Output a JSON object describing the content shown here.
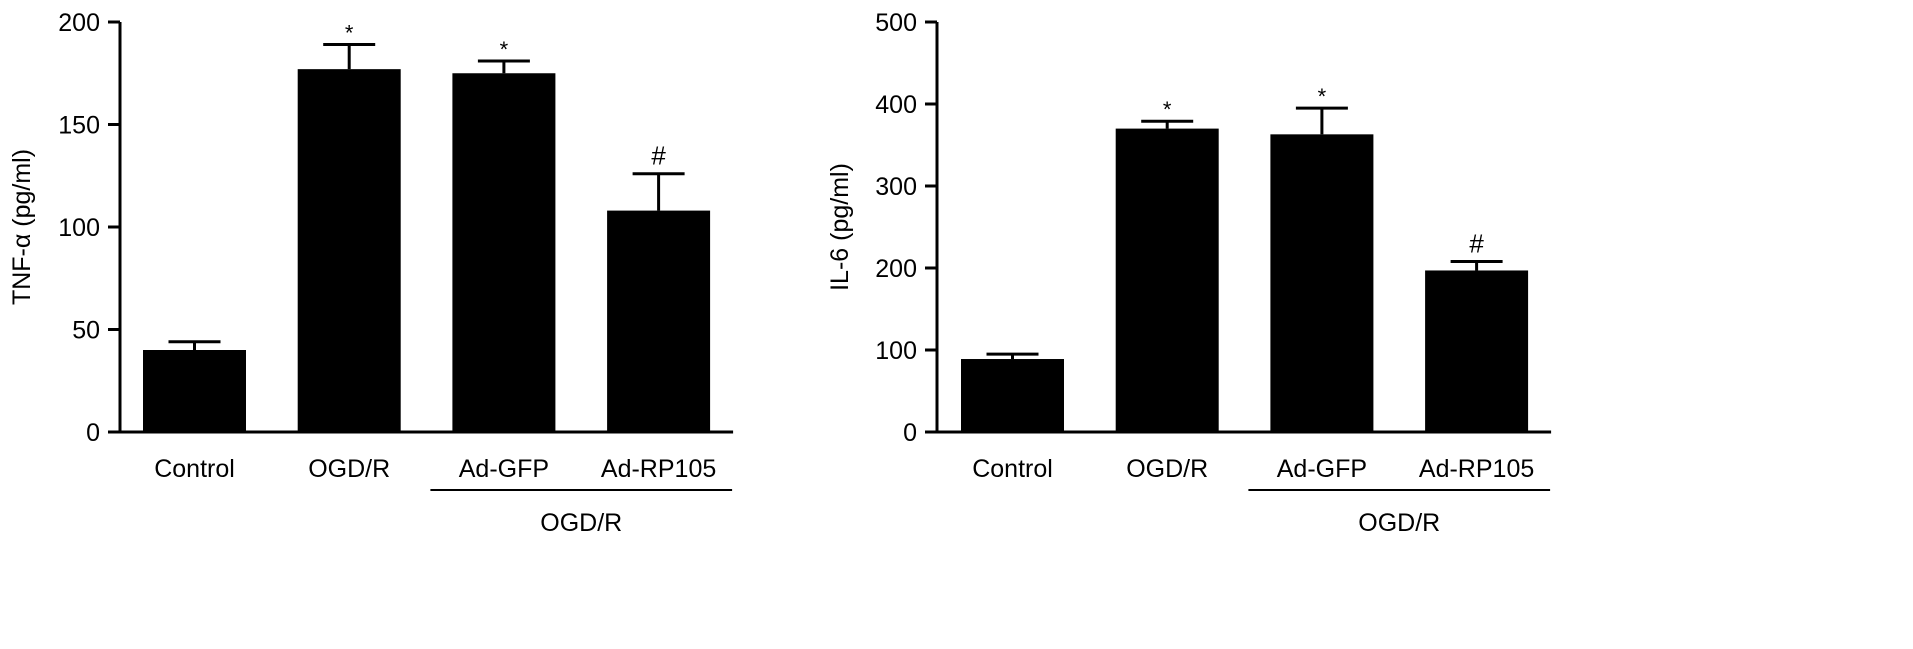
{
  "chart_data": [
    {
      "type": "bar",
      "categories": [
        "Control",
        "OGD/R",
        "Ad-GFP",
        "Ad-RP105"
      ],
      "values": [
        40,
        177,
        175,
        108
      ],
      "errors": [
        4,
        12,
        6,
        18
      ],
      "annotations": [
        "",
        "*",
        "*",
        "#"
      ],
      "group": {
        "label": "OGD/R",
        "from": 2,
        "to": 3
      },
      "ylabel": "TNF-α (pg/ml)",
      "ylim": [
        0,
        200
      ],
      "yticks": [
        0,
        50,
        100,
        150,
        200
      ],
      "bar_color": "#000000",
      "grid": false
    },
    {
      "type": "bar",
      "categories": [
        "Control",
        "OGD/R",
        "Ad-GFP",
        "Ad-RP105"
      ],
      "values": [
        89,
        370,
        363,
        197
      ],
      "errors": [
        6,
        9,
        32,
        11
      ],
      "annotations": [
        "",
        "*",
        "*",
        "#"
      ],
      "group": {
        "label": "OGD/R",
        "from": 2,
        "to": 3
      },
      "ylabel": "IL-6 (pg/ml)",
      "ylim": [
        0,
        500
      ],
      "yticks": [
        0,
        100,
        200,
        300,
        400,
        500
      ],
      "bar_color": "#000000",
      "grid": false
    }
  ]
}
